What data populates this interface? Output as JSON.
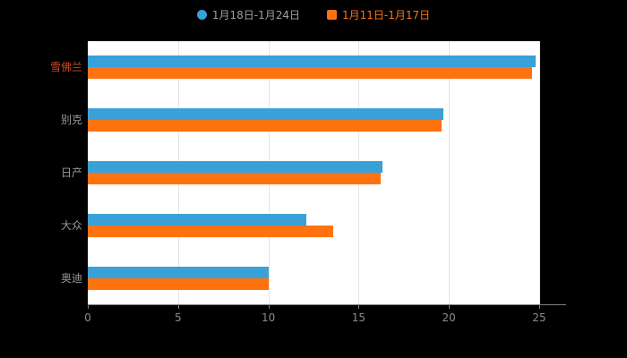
{
  "colors": {
    "background": "#000000",
    "plot_background": "#ffffff",
    "series_blue": "#3aa1d8",
    "series_orange": "#ff7210",
    "grid_line": "#e4e4e4",
    "axis_line": "#808080",
    "tick_label": "#8c8c8c",
    "category_label": "#999999",
    "category_label_highlight": "#cc4a21",
    "legend_label_1": "#9aa0a6",
    "legend_label_2": "#ff7210"
  },
  "legend": {
    "items": [
      {
        "label": "1月18日-1月24日",
        "color": "#3aa1d8",
        "icon": "circle"
      },
      {
        "label": "1月11日-1月17日",
        "color": "#ff7210",
        "icon": "square"
      }
    ]
  },
  "chart_data": {
    "type": "bar",
    "orientation": "horizontal",
    "title": "",
    "xlabel": "",
    "ylabel": "",
    "categories": [
      "雪佛兰",
      "别克",
      "日产",
      "大众",
      "奥迪"
    ],
    "series": [
      {
        "name": "1月18日-1月24日",
        "color": "#3aa1d8",
        "values": [
          24.8,
          19.7,
          16.3,
          12.1,
          10.0
        ]
      },
      {
        "name": "1月11日-1月17日",
        "color": "#ff7210",
        "values": [
          24.6,
          19.6,
          16.2,
          13.6,
          10.0
        ]
      }
    ],
    "x_ticks": [
      0,
      5,
      10,
      15,
      20,
      25
    ],
    "xlim": [
      0,
      25
    ],
    "grid": true,
    "legend_position": "top",
    "highlighted_category": "雪佛兰"
  }
}
